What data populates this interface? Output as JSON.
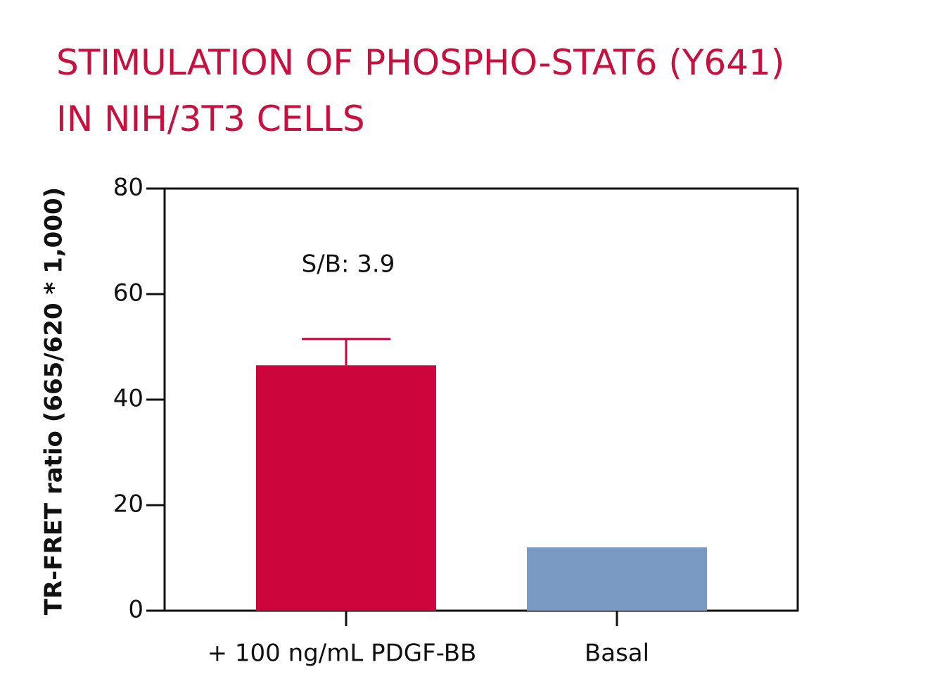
{
  "chart_data": {
    "type": "bar",
    "title": [
      "STIMULATION OF PHOSPHO-STAT6 (Y641)",
      "IN NIH/3T3 CELLS"
    ],
    "y_label": "TR-FRET ratio (665/620 * 1,000)",
    "categories": [
      "+ 100 ng/mL PDGF-BB",
      "Basal"
    ],
    "values": [
      46.5,
      12
    ],
    "errors": [
      5,
      null
    ],
    "colors": [
      "#cc063d",
      "#7a9ac4"
    ],
    "annotation": "S/B: 3.9",
    "ylim": [
      0,
      80
    ],
    "yticks": [
      0,
      20,
      40,
      60,
      80
    ]
  }
}
